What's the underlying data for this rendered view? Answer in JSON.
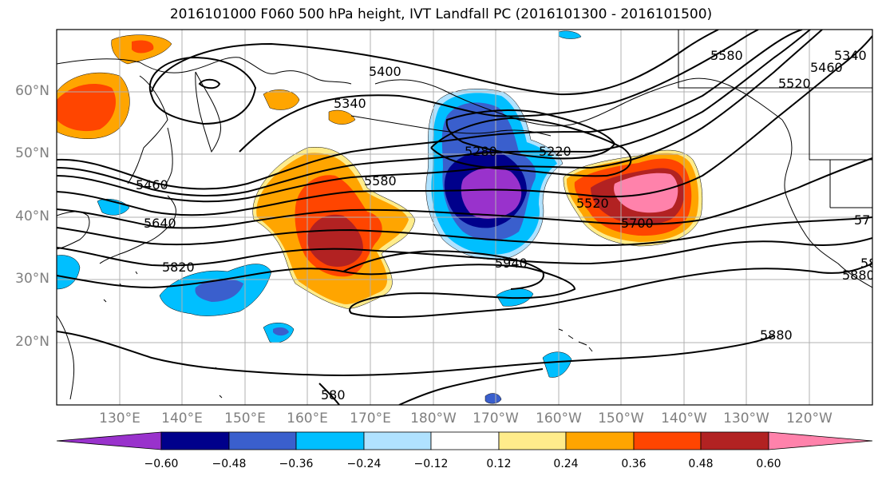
{
  "title": "2016101000 F060 500 hPa height, IVT Landfall PC (2016101300 - 2016101500)",
  "lat_labels": [
    "60°N",
    "50°N",
    "40°N",
    "30°N",
    "20°N"
  ],
  "lon_labels": [
    "130°E",
    "140°E",
    "150°E",
    "160°E",
    "170°E",
    "180°W",
    "170°W",
    "160°W",
    "150°W",
    "140°W",
    "130°W",
    "120°W"
  ],
  "contour_labels": [
    "5400",
    "5340",
    "5220",
    "5280",
    "5460",
    "5580",
    "5520",
    "5640",
    "5700",
    "57",
    "5820",
    "5940",
    "5880",
    "580",
    "5580",
    "5520",
    "5460",
    "5340",
    "5880",
    "58"
  ],
  "colorbar": {
    "ticks": [
      "−0.60",
      "−0.48",
      "−0.36",
      "−0.24",
      "−0.12",
      "0.12",
      "0.24",
      "0.36",
      "0.48",
      "0.60"
    ],
    "colors": [
      "#9932cc",
      "#00008b",
      "#3a5fcd",
      "#00bfff",
      "#b0e2ff",
      "#ffffff",
      "#ffec8b",
      "#ffa500",
      "#ff4500",
      "#b22222",
      "#ff82ab"
    ]
  }
}
